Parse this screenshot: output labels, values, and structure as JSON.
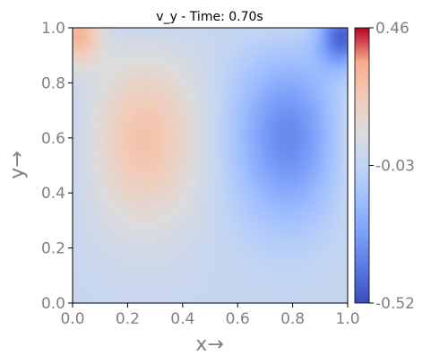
{
  "chart_data": {
    "type": "heatmap",
    "title": "v_y - Time: 0.70s",
    "xlabel": "x→",
    "ylabel": "y→",
    "xlim": [
      0.0,
      1.0
    ],
    "ylim": [
      0.0,
      1.0
    ],
    "xticks": [
      0.0,
      0.2,
      0.4,
      0.6,
      0.8,
      1.0
    ],
    "xtick_labels": [
      "0.0",
      "0.2",
      "0.4",
      "0.6",
      "0.8",
      "1.0"
    ],
    "yticks": [
      0.0,
      0.2,
      0.4,
      0.6,
      0.8,
      1.0
    ],
    "ytick_labels": [
      "0.0",
      "0.2",
      "0.4",
      "0.6",
      "0.8",
      "1.0"
    ],
    "colormap": "coolwarm",
    "colorbar": {
      "min": -0.52,
      "max": 0.46,
      "ticks": [
        0.46,
        -0.03,
        -0.52
      ],
      "tick_labels": [
        "0.46",
        "-0.03",
        "-0.52"
      ]
    },
    "field_features": [
      {
        "x": 0.22,
        "y": 0.63,
        "value": 0.2
      },
      {
        "x": 0.84,
        "y": 0.64,
        "value": -0.31
      },
      {
        "x": 0.02,
        "y": 0.98,
        "value": 0.3
      },
      {
        "x": 0.98,
        "y": 0.97,
        "value": -0.45
      }
    ],
    "grid": false
  }
}
